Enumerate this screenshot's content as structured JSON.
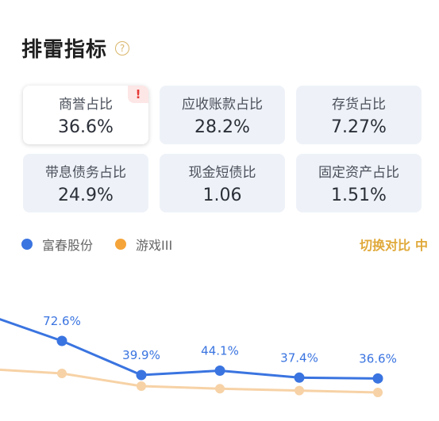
{
  "header": {
    "title": "排雷指标",
    "help_icon": "?"
  },
  "metrics": [
    {
      "label": "商誉占比",
      "value": "36.6%",
      "active": true,
      "warning": "!"
    },
    {
      "label": "应收账款占比",
      "value": "28.2%"
    },
    {
      "label": "存货占比",
      "value": "7.27%"
    },
    {
      "label": "带息债务占比",
      "value": "24.9%"
    },
    {
      "label": "现金短债比",
      "value": "1.06"
    },
    {
      "label": "固定资产占比",
      "value": "1.51%"
    }
  ],
  "legend": {
    "series_a": "富春股份",
    "series_b": "游戏III",
    "switch_label": "切换对比",
    "switch_icon": "中"
  },
  "colors": {
    "series_a": "#3a74e0",
    "series_b": "#f5a43a",
    "series_b_line": "#f7d2a6"
  },
  "chart_data": {
    "type": "line",
    "series": [
      {
        "name": "富春股份",
        "values": [
          100,
          72.6,
          39.9,
          44.1,
          37.4,
          36.6
        ],
        "labels": [
          "",
          "72.6%",
          "39.9%",
          "44.1%",
          "37.4%",
          "36.6%"
        ]
      },
      {
        "name": "游戏III",
        "values": [
          18,
          15,
          5,
          3,
          1.5,
          0
        ]
      }
    ]
  }
}
